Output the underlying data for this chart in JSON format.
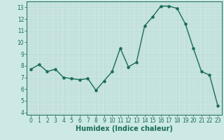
{
  "x": [
    0,
    1,
    2,
    3,
    4,
    5,
    6,
    7,
    8,
    9,
    10,
    11,
    12,
    13,
    14,
    15,
    16,
    17,
    18,
    19,
    20,
    21,
    22,
    23
  ],
  "y": [
    7.7,
    8.1,
    7.5,
    7.7,
    7.0,
    6.9,
    6.8,
    6.9,
    5.9,
    6.7,
    7.5,
    9.5,
    7.9,
    8.3,
    11.4,
    12.2,
    13.1,
    13.1,
    12.9,
    11.6,
    9.5,
    7.5,
    7.2,
    4.6
  ],
  "line_color": "#1a6b5a",
  "marker": "o",
  "markersize": 2.2,
  "linewidth": 1.0,
  "xlabel": "Humidex (Indice chaleur)",
  "xlim": [
    -0.5,
    23.5
  ],
  "ylim": [
    3.8,
    13.5
  ],
  "yticks": [
    4,
    5,
    6,
    7,
    8,
    9,
    10,
    11,
    12,
    13
  ],
  "xticks": [
    0,
    1,
    2,
    3,
    4,
    5,
    6,
    7,
    8,
    9,
    10,
    11,
    12,
    13,
    14,
    15,
    16,
    17,
    18,
    19,
    20,
    21,
    22,
    23
  ],
  "bg_color": "#cce9e5",
  "grid_color": "#b5d5d0",
  "tick_fontsize": 5.5,
  "label_fontsize": 7.0
}
